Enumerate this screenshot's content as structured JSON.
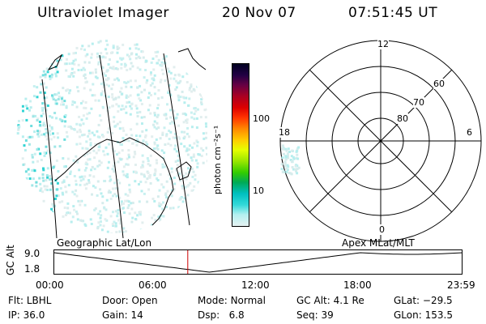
{
  "header": {
    "instrument": "Ultraviolet Imager",
    "date": "20 Nov 07",
    "time": "07:51:45 UT"
  },
  "colorbar": {
    "unit_label": "photon cm⁻²s⁻¹",
    "ticks": [
      "100",
      "10"
    ],
    "scale": "log",
    "colors": [
      "#e6f2f2",
      "#b3f0f0",
      "#33d9d9",
      "#00c0c0",
      "#00aa55",
      "#33cc00",
      "#99e600",
      "#e6ff00",
      "#ffcc00",
      "#ff8800",
      "#ff3300",
      "#dd0000",
      "#aa0022",
      "#660044",
      "#220044",
      "#000022"
    ]
  },
  "polar": {
    "hours": [
      "12",
      "18",
      "6",
      "0"
    ],
    "lat_rings": [
      "60",
      "70",
      "80"
    ]
  },
  "timeline": {
    "left_label": "Geographic Lat/Lon",
    "right_label": "Apex  MLat/MLT",
    "y_axis_label": "GC Alt",
    "y_ticks": [
      "9.0",
      "1.8"
    ],
    "x_ticks": [
      "00:00",
      "06:00",
      "12:00",
      "18:00",
      "23:59"
    ],
    "current_time_fraction": 0.327,
    "marker_color": "#cc0000"
  },
  "status": {
    "row1": [
      {
        "label": "Flt:",
        "value": "LBHL"
      },
      {
        "label": "Door:",
        "value": "Open"
      },
      {
        "label": "Mode:",
        "value": "Normal"
      },
      {
        "label": "GC Alt:",
        "value": "4.1 Re"
      },
      {
        "label": "GLat:",
        "value": "−29.5"
      }
    ],
    "row2": [
      {
        "label": "IP:",
        "value": "36.0"
      },
      {
        "label": "Gain:",
        "value": "14"
      },
      {
        "label": "Dsp:",
        "value": "6.8"
      },
      {
        "label": "Seq:",
        "value": "39"
      },
      {
        "label": "GLon:",
        "value": "153.5"
      }
    ]
  }
}
